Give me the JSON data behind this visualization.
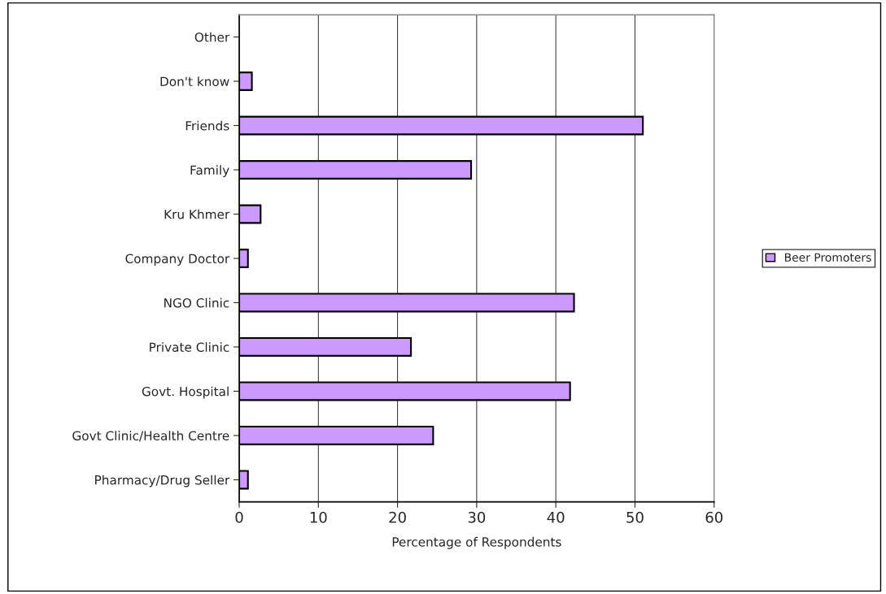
{
  "chart_data": {
    "type": "bar",
    "orientation": "horizontal",
    "xlabel": "Percentage of Respondents",
    "categories": [
      "Other",
      "Don't know",
      "Friends",
      "Family",
      "Kru Khmer",
      "Company Doctor",
      "NGO Clinic",
      "Private Clinic",
      "Govt. Hospital",
      "Govt Clinic/Health Centre",
      "Pharmacy/Drug Seller"
    ],
    "series": [
      {
        "name": "Beer Promoters",
        "color": "#cc99ff",
        "values": [
          0,
          1.6,
          51.0,
          29.3,
          2.7,
          1.1,
          42.3,
          21.7,
          41.8,
          24.5,
          1.1
        ]
      }
    ],
    "xlim": [
      0,
      60
    ],
    "xticks": [
      0,
      10,
      20,
      30,
      40,
      50,
      60
    ],
    "grid": "x",
    "legend": "right"
  }
}
